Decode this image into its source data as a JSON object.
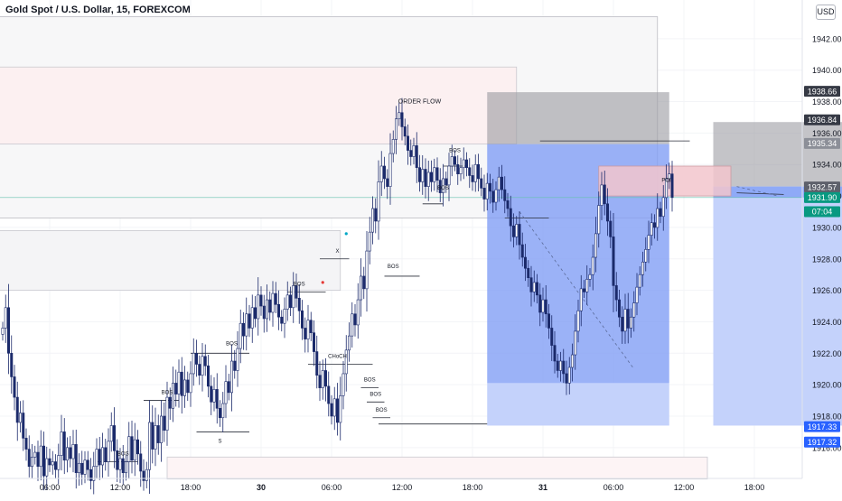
{
  "header": {
    "title": "Gold Spot / U.S. Dollar, 15, FOREXCOM",
    "currency": "USD"
  },
  "chart_data": {
    "type": "candlestick",
    "ylim": [
      1914.9,
      1943.6
    ],
    "y_ticks": [
      "1916.00",
      "1918.00",
      "1920.00",
      "1922.00",
      "1924.00",
      "1926.00",
      "1928.00",
      "1930.00",
      "1932.00",
      "1934.00",
      "1936.00",
      "1938.00",
      "1940.00",
      "1942.00"
    ],
    "x_ticks": [
      {
        "label": "06:00",
        "bar": 16
      },
      {
        "label": "12:00",
        "bar": 40
      },
      {
        "label": "18:00",
        "bar": 64
      },
      {
        "label": "30",
        "bar": 88
      },
      {
        "label": "06:00",
        "bar": 112
      },
      {
        "label": "12:00",
        "bar": 136
      },
      {
        "label": "18:00",
        "bar": 160
      },
      {
        "label": "31",
        "bar": 184
      },
      {
        "label": "06:00",
        "bar": 208
      },
      {
        "label": "12:00",
        "bar": 232
      },
      {
        "label": "18:00",
        "bar": 256
      }
    ],
    "up_color": "#ffffff",
    "down_color": "#1b2a6b",
    "closes": [
      1923.6,
      1924.9,
      1922.0,
      1920.5,
      1919.2,
      1917.6,
      1918.2,
      1916.6,
      1915.9,
      1914.8,
      1915.4,
      1915.7,
      1914.8,
      1916.1,
      1914.2,
      1915.3,
      1914.9,
      1915.1,
      1914.6,
      1915.5,
      1917.0,
      1915.2,
      1916.0,
      1915.3,
      1916.2,
      1914.4,
      1915.0,
      1914.3,
      1915.2,
      1914.6,
      1913.9,
      1914.8,
      1915.9,
      1914.9,
      1916.0,
      1915.1,
      1916.4,
      1917.4,
      1915.8,
      1914.6,
      1915.3,
      1914.4,
      1915.1,
      1916.7,
      1915.2,
      1916.5,
      1915.6,
      1914.5,
      1913.9,
      1914.6,
      1917.6,
      1915.9,
      1917.4,
      1916.3,
      1918.0,
      1917.1,
      1919.2,
      1918.5,
      1920.1,
      1919.4,
      1920.8,
      1919.3,
      1920.3,
      1919.5,
      1920.7,
      1922.0,
      1921.3,
      1920.6,
      1921.8,
      1921.2,
      1919.9,
      1918.9,
      1919.7,
      1918.5,
      1917.9,
      1918.8,
      1920.2,
      1919.5,
      1921.5,
      1920.9,
      1922.3,
      1923.9,
      1923.1,
      1924.5,
      1923.6,
      1924.9,
      1924.2,
      1925.7,
      1925.0,
      1924.2,
      1925.4,
      1924.6,
      1925.8,
      1925.1,
      1924.3,
      1923.9,
      1924.8,
      1925.7,
      1924.9,
      1926.3,
      1925.5,
      1924.7,
      1923.6,
      1922.9,
      1924.1,
      1923.3,
      1922.1,
      1920.6,
      1919.8,
      1920.9,
      1919.9,
      1918.8,
      1918.0,
      1919.1,
      1917.6,
      1919.3,
      1920.7,
      1922.2,
      1923.1,
      1924.5,
      1923.8,
      1925.4,
      1926.9,
      1926.1,
      1928.5,
      1929.7,
      1931.2,
      1930.4,
      1932.9,
      1933.9,
      1933.1,
      1932.6,
      1934.7,
      1935.6,
      1936.9,
      1937.3,
      1936.4,
      1935.8,
      1934.9,
      1934.5,
      1935.2,
      1933.8,
      1932.9,
      1933.7,
      1932.6,
      1933.5,
      1932.9,
      1933.8,
      1933.0,
      1932.2,
      1933.1,
      1932.7,
      1933.9,
      1934.5,
      1934.0,
      1933.4,
      1933.8,
      1934.3,
      1933.8,
      1933.3,
      1932.9,
      1934.0,
      1933.1,
      1932.5,
      1931.8,
      1932.8,
      1932.3,
      1931.6,
      1932.4,
      1933.2,
      1932.4,
      1931.7,
      1931.2,
      1930.1,
      1929.4,
      1930.2,
      1928.9,
      1928.1,
      1927.4,
      1926.8,
      1925.9,
      1926.5,
      1925.7,
      1924.6,
      1925.4,
      1924.5,
      1923.6,
      1922.5,
      1921.5,
      1920.9,
      1921.5,
      1920.7,
      1920.1,
      1921.1,
      1921.9,
      1923.4,
      1924.7,
      1926.1,
      1925.9,
      1926.7,
      1927.0,
      1928.1,
      1929.6,
      1931.4,
      1932.7,
      1931.5,
      1930.4,
      1929.4,
      1926.3,
      1925.4,
      1924.3,
      1923.4,
      1924.8,
      1923.6,
      1924.3,
      1925.2,
      1926.2,
      1927.0,
      1927.8,
      1928.6,
      1929.5,
      1930.3,
      1930.0,
      1931.2,
      1930.7,
      1931.9,
      1933.1,
      1933.4,
      1931.9
    ],
    "zones": [
      {
        "name": "zone-upper-grey",
        "x0": -5,
        "x1": 223,
        "y0": 1943.4,
        "y1": 1930.6,
        "fill": "#f7f7f8",
        "stroke": "#bdbdc2"
      },
      {
        "name": "zone-pink-order-flow",
        "x0": -5,
        "x1": 175,
        "y0": 1940.2,
        "y1": 1935.3,
        "fill": "#fcf0f1",
        "stroke": "#c9c9cf"
      },
      {
        "name": "zone-lower-grey",
        "x0": -5,
        "x1": 115,
        "y0": 1929.8,
        "y1": 1926.0,
        "fill": "#f4f4f6",
        "stroke": "#c9c9cf"
      },
      {
        "name": "zone-bottom-strip",
        "x0": 56,
        "x1": 240,
        "y0": 1915.4,
        "y1": 1914.0,
        "fill": "#fdf4f5",
        "stroke": "#c9c9cf"
      },
      {
        "name": "position-1-blue-dark",
        "x0": 165,
        "x1": 227,
        "y0": 1935.3,
        "y1": 1920.1,
        "fill": "#7f9cf5",
        "stroke": "none",
        "opacity": 0.78
      },
      {
        "name": "position-1-blue-light",
        "x0": 165,
        "x1": 227,
        "y0": 1920.1,
        "y1": 1917.4,
        "fill": "#c4d2fb",
        "stroke": "none"
      },
      {
        "name": "position-1-grey",
        "x0": 165,
        "x1": 227,
        "y0": 1938.6,
        "y1": 1935.3,
        "fill": "#9a9aa0",
        "stroke": "none",
        "opacity": 0.6
      },
      {
        "name": "position-2-grey",
        "x0": 242,
        "x1": 293,
        "y0": 1936.7,
        "y1": 1932.6,
        "fill": "#9a9aa0",
        "stroke": "none",
        "opacity": 0.58
      },
      {
        "name": "position-2-blue-light",
        "x0": 242,
        "x1": 293,
        "y0": 1932.6,
        "y1": 1917.4,
        "fill": "#c4d2fb",
        "stroke": "none"
      },
      {
        "name": "position-2-blue-strip",
        "x0": 242,
        "x1": 293,
        "y0": 1932.6,
        "y1": 1931.9,
        "fill": "#8faaf7",
        "stroke": "none"
      },
      {
        "name": "poi-zone",
        "x0": 203,
        "x1": 248,
        "y0": 1933.9,
        "y1": 1932.0,
        "fill": "#f2c6cc",
        "stroke": "#c99aa2",
        "opacity": 0.85
      }
    ],
    "annotations": [
      {
        "text": "ORDER FLOW",
        "bar": 142,
        "price": 1937.9
      },
      {
        "text": "POI",
        "bar": 226,
        "price": 1932.9
      },
      {
        "text": "BOS",
        "bar": 154,
        "price": 1934.8
      },
      {
        "text": "BOS",
        "bar": 150,
        "price": 1932.4
      },
      {
        "text": "BOS",
        "bar": 133,
        "price": 1927.4
      },
      {
        "text": "BOS",
        "bar": 101,
        "price": 1926.3
      },
      {
        "text": "X",
        "bar": 114,
        "price": 1928.4
      },
      {
        "text": "BOS",
        "bar": 78,
        "price": 1922.5
      },
      {
        "text": "CHoCH",
        "bar": 114,
        "price": 1921.7
      },
      {
        "text": "BOS",
        "bar": 125,
        "price": 1920.2
      },
      {
        "text": "BOS",
        "bar": 127,
        "price": 1919.3
      },
      {
        "text": "BOS",
        "bar": 129,
        "price": 1918.3
      },
      {
        "text": "BOS",
        "bar": 56,
        "price": 1919.4
      },
      {
        "text": "S",
        "bar": 74,
        "price": 1916.3
      },
      {
        "text": "BOS",
        "bar": 41,
        "price": 1915.5
      }
    ],
    "price_labels": [
      {
        "text": "1938.66",
        "price": 1938.66,
        "bg": "#363a45",
        "color": "#ffffff"
      },
      {
        "text": "1936.84",
        "price": 1936.84,
        "bg": "#363a45",
        "color": "#ffffff"
      },
      {
        "text": "1935.34",
        "price": 1935.34,
        "bg": "#8c8f98",
        "color": "#ffffff"
      },
      {
        "text": "1932.57",
        "price": 1932.57,
        "bg": "#5d606b",
        "color": "#ffffff"
      },
      {
        "text": "1931.90",
        "price": 1931.9,
        "bg": "#089981",
        "color": "#ffffff"
      },
      {
        "text": "07:04",
        "price": 1931.0,
        "bg": "#089981",
        "color": "#ffffff"
      },
      {
        "text": "1917.33",
        "price": 1917.33,
        "bg": "#2962ff",
        "color": "#ffffff"
      },
      {
        "text": "1917.32",
        "price": 1916.35,
        "bg": "#2962ff",
        "color": "#ffffff"
      }
    ],
    "current_price": 1931.9
  }
}
